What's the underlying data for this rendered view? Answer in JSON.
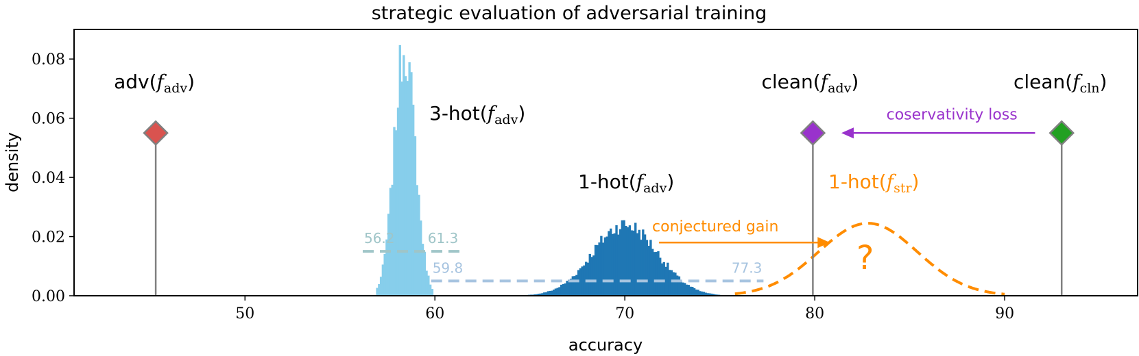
{
  "chart_data": {
    "type": "histogram",
    "title": "strategic evaluation of adversarial training",
    "xlabel": "accuracy",
    "ylabel": "density",
    "xlim": [
      41,
      97
    ],
    "ylim": [
      0,
      0.09
    ],
    "xticks": [
      "50",
      "60",
      "70",
      "80",
      "90"
    ],
    "yticks": [
      "0.00",
      "0.02",
      "0.04",
      "0.06",
      "0.08"
    ],
    "grid": false,
    "series": [
      {
        "name": "3-hot",
        "name_arg": "f",
        "name_sub": "adv",
        "kind": "histogram",
        "color": "#87ceeb",
        "mean": 58.4,
        "std": 0.55,
        "peak_density": 0.084,
        "range": [
          56.9,
          59.9
        ]
      },
      {
        "name": "1-hot",
        "name_arg": "f",
        "name_sub": "adv",
        "kind": "histogram",
        "color": "#1f77b4",
        "mean": 70.0,
        "std": 1.7,
        "peak_density": 0.024,
        "range": [
          64.5,
          75.5
        ]
      },
      {
        "name": "1-hot",
        "name_arg": "f",
        "name_sub": "str",
        "kind": "dashed-curve",
        "color": "#ff8c00",
        "mean": 82.8,
        "std": 2.6,
        "peak_density": 0.0245,
        "range": [
          75.8,
          90.0
        ],
        "annotation": "?"
      }
    ],
    "markers": [
      {
        "label": "adv",
        "arg": "f",
        "sub": "adv",
        "x": 45.3,
        "y": 0.055,
        "color": "#d9534f"
      },
      {
        "label": "clean",
        "arg": "f",
        "sub": "adv",
        "x": 79.9,
        "y": 0.055,
        "color": "#9932cc"
      },
      {
        "label": "clean",
        "arg": "f",
        "sub": "cln",
        "x": 93.0,
        "y": 0.055,
        "color": "#22a022"
      }
    ],
    "intervals": [
      {
        "from": 56.2,
        "to": 61.3,
        "y": 0.015,
        "color": "#9fc5c8",
        "label_from": "56.2",
        "label_to": "61.3"
      },
      {
        "from": 59.8,
        "to": 77.3,
        "y": 0.005,
        "color": "#a7c4e0",
        "label_from": "59.8",
        "label_to": "77.3"
      }
    ],
    "arrows": [
      {
        "label": "coservativity loss",
        "from": 91.6,
        "to": 81.4,
        "y": 0.055,
        "color": "#9932cc"
      },
      {
        "label": "conjectured gain",
        "from": 71.8,
        "to": 80.8,
        "y": 0.018,
        "color": "#ff8c00"
      }
    ]
  }
}
